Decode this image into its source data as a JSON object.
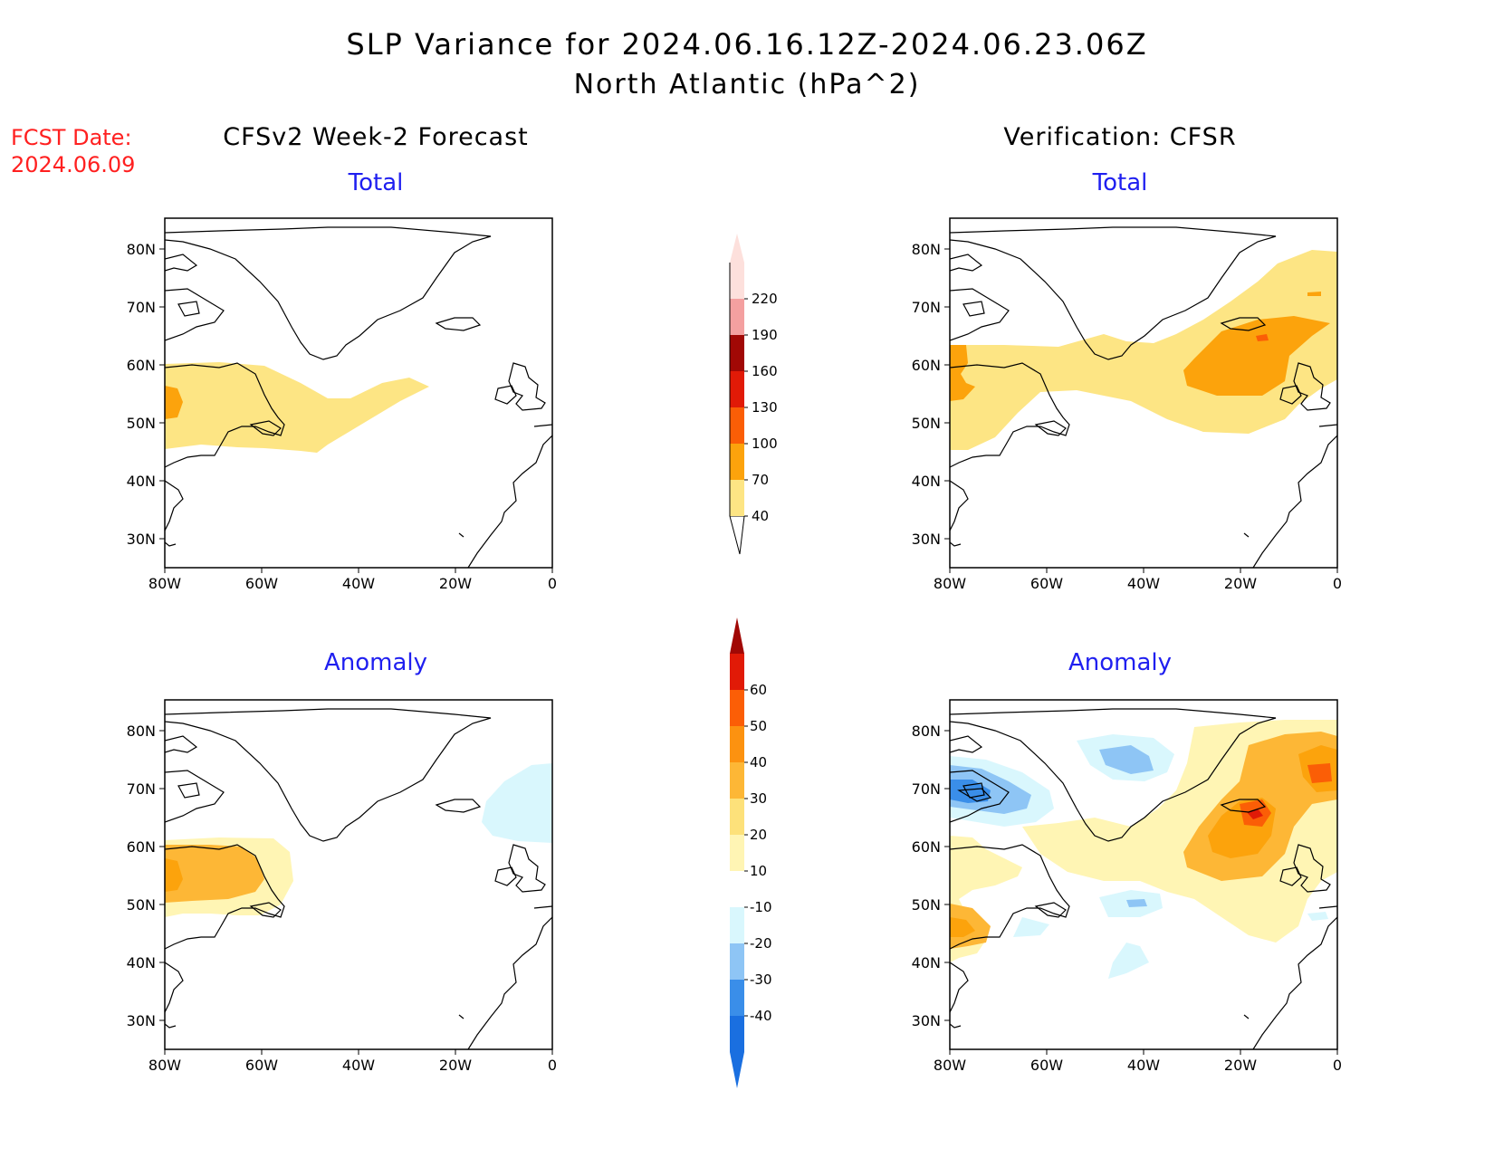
{
  "title": {
    "line1": "SLP Variance for 2024.06.16.12Z-2024.06.23.06Z",
    "line2": "North Atlantic (hPa^2)"
  },
  "fcst": {
    "label": "FCST Date:",
    "date": "2024.06.09"
  },
  "columns": {
    "left": "CFSv2 Week-2 Forecast",
    "right": "Verification: CFSR"
  },
  "panel_titles": {
    "total": "Total",
    "anomaly": "Anomaly"
  },
  "axes": {
    "lat_labels": [
      "80N",
      "70N",
      "60N",
      "50N",
      "40N",
      "30N"
    ],
    "lon_labels": [
      "80W",
      "60W",
      "40W",
      "20W",
      "0"
    ]
  },
  "colorbars": {
    "total": {
      "labels": [
        "40",
        "70",
        "100",
        "130",
        "160",
        "190",
        "220"
      ],
      "colors": [
        "#fde584",
        "#fca30c",
        "#fb5e06",
        "#e11a07",
        "#a10805",
        "#f4a0a0",
        "#fde0dc"
      ]
    },
    "anomaly": {
      "labels": [
        "-40",
        "-30",
        "-20",
        "-10",
        "10",
        "20",
        "30",
        "40",
        "50",
        "60"
      ],
      "colors": [
        "#1a6fe0",
        "#3a8ee9",
        "#8ec5f5",
        "#d9f7fd",
        "#ffffff",
        "#fff5b4",
        "#fde17a",
        "#fdb736",
        "#fc9210",
        "#fb5e06",
        "#e11a07",
        "#a10805"
      ]
    }
  },
  "colors": {
    "title_text": "#000000",
    "subtitle_text": "#1f1ff0",
    "fcst_text": "#ff2020"
  }
}
